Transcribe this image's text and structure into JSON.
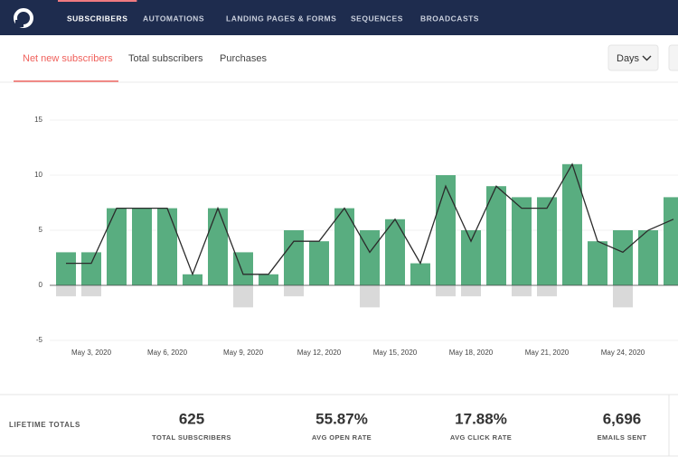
{
  "nav": {
    "items": [
      "SUBSCRIBERS",
      "AUTOMATIONS",
      "LANDING PAGES & FORMS",
      "SEQUENCES",
      "BROADCASTS"
    ],
    "active": 0
  },
  "tabs": {
    "items": [
      "Net new subscribers",
      "Total subscribers",
      "Purchases"
    ],
    "active": 0,
    "range": "Days"
  },
  "chart_data": {
    "type": "bar",
    "categories": [
      null,
      "May 3, 2020",
      null,
      null,
      "May 6, 2020",
      null,
      null,
      "May 9, 2020",
      null,
      null,
      "May 12, 2020",
      null,
      null,
      "May 15, 2020",
      null,
      null,
      "May 18, 2020",
      null,
      null,
      "May 21, 2020",
      null,
      null,
      "May 24, 2020",
      null,
      null
    ],
    "series": [
      {
        "type": "bar",
        "color": "#59ad80",
        "values": [
          3,
          3,
          7,
          7,
          7,
          1,
          7,
          3,
          1,
          5,
          4,
          7,
          5,
          6,
          2,
          10,
          5,
          9,
          8,
          8,
          11,
          4,
          5,
          5,
          8
        ]
      },
      {
        "type": "bar",
        "color": "#d9d9d9",
        "values": [
          -1,
          -1,
          0,
          0,
          0,
          0,
          0,
          -2,
          0,
          -1,
          0,
          0,
          -2,
          0,
          0,
          -1,
          -1,
          0,
          -1,
          -1,
          0,
          0,
          -2,
          0,
          0
        ]
      },
      {
        "type": "line",
        "color": "#2b2b2b",
        "values": [
          2,
          2,
          7,
          7,
          7,
          1,
          7,
          1,
          1,
          4,
          4,
          7,
          3,
          6,
          2,
          9,
          4,
          9,
          7,
          7,
          11,
          4,
          3,
          5,
          6
        ]
      }
    ],
    "ylim": [
      -5,
      15
    ],
    "yticks": [
      -5,
      0,
      5,
      10,
      15
    ],
    "grid": true
  },
  "totals": {
    "title": "LIFETIME TOTALS",
    "items": [
      {
        "value": "625",
        "label": "TOTAL SUBSCRIBERS"
      },
      {
        "value": "55.87%",
        "label": "AVG OPEN RATE"
      },
      {
        "value": "17.88%",
        "label": "AVG CLICK RATE"
      },
      {
        "value": "6,696",
        "label": "EMAILS SENT"
      }
    ]
  }
}
